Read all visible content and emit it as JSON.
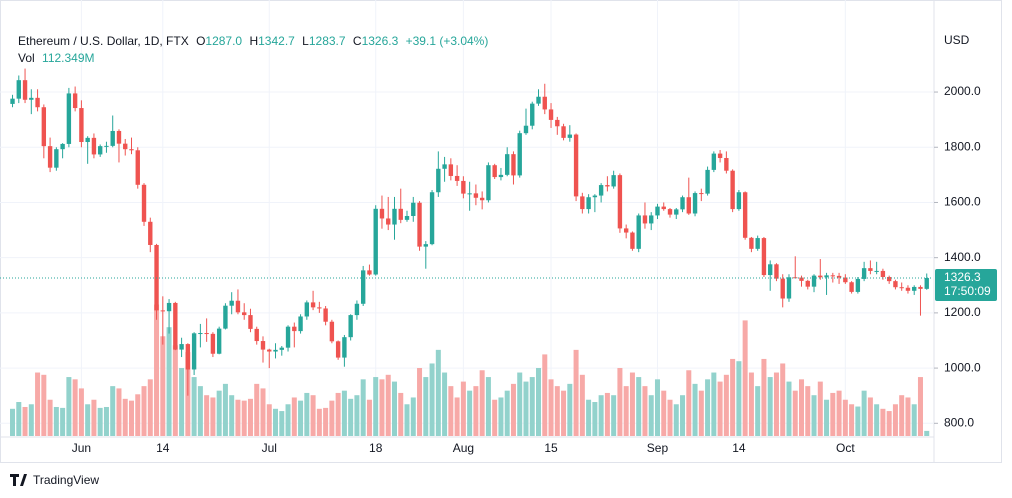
{
  "chart_data": {
    "type": "candlestick",
    "title": "Ethereum / U.S. Dollar, 1D, FTX",
    "legend": {
      "o_label": "O",
      "o": "1287.0",
      "h_label": "H",
      "h": "1342.7",
      "l_label": "L",
      "l": "1283.7",
      "c_label": "C",
      "c": "1326.3",
      "change": "+39.1 (+3.04%)",
      "vol_label": "Vol",
      "vol": "112.349M"
    },
    "currency": "USD",
    "open": [
      1957,
      1976,
      2043,
      1972,
      1979,
      1945,
      1804,
      1726,
      1793,
      1812,
      1995,
      1942,
      1819,
      1834,
      1774,
      1804,
      1805,
      1859,
      1813,
      1793,
      1789,
      1664,
      1530,
      1446,
      1209,
      1206,
      1236,
      1067,
      1087,
      995,
      1126,
      1127,
      1124,
      1052,
      1143,
      1226,
      1244,
      1202,
      1192,
      1142,
      1098,
      1067,
      1060,
      1066,
      1074,
      1150,
      1134,
      1187,
      1238,
      1220,
      1216,
      1168,
      1097,
      1038,
      1112,
      1192,
      1233,
      1354,
      1339,
      1577,
      1542,
      1520,
      1577,
      1537,
      1551,
      1599,
      1440,
      1449,
      1637,
      1722,
      1738,
      1696,
      1678,
      1632,
      1633,
      1617,
      1608,
      1735,
      1692,
      1700,
      1775,
      1698,
      1851,
      1878,
      1958,
      1983,
      1937,
      1899,
      1876,
      1834,
      1846,
      1622,
      1576,
      1619,
      1625,
      1663,
      1658,
      1699,
      1506,
      1491,
      1432,
      1553,
      1524,
      1553,
      1585,
      1576,
      1556,
      1575,
      1619,
      1560,
      1634,
      1632,
      1718,
      1777,
      1761,
      1715,
      1576,
      1637,
      1472,
      1432,
      1471,
      1337,
      1376,
      1324,
      1252,
      1329,
      1328,
      1316,
      1295,
      1335,
      1329,
      1336,
      1334,
      1328,
      1311,
      1276,
      1323,
      1362,
      1352,
      1352,
      1330,
      1315,
      1293,
      1291,
      1280,
      1294,
      1287.0
    ],
    "high": [
      1990,
      2060,
      2085,
      2010,
      2010,
      1955,
      1835,
      1800,
      1815,
      2015,
      2020,
      1970,
      1840,
      1850,
      1810,
      1820,
      1915,
      1865,
      1830,
      1835,
      1800,
      1670,
      1545,
      1450,
      1260,
      1250,
      1240,
      1110,
      1090,
      1130,
      1160,
      1180,
      1130,
      1150,
      1235,
      1275,
      1285,
      1235,
      1215,
      1150,
      1115,
      1070,
      1090,
      1080,
      1155,
      1165,
      1195,
      1245,
      1280,
      1240,
      1225,
      1175,
      1100,
      1120,
      1195,
      1245,
      1370,
      1375,
      1590,
      1625,
      1620,
      1620,
      1650,
      1570,
      1620,
      1605,
      1460,
      1645,
      1785,
      1765,
      1760,
      1735,
      1695,
      1675,
      1665,
      1640,
      1745,
      1740,
      1725,
      1800,
      1785,
      1860,
      1940,
      1965,
      2010,
      2030,
      1960,
      1910,
      1885,
      1880,
      1850,
      1635,
      1630,
      1630,
      1670,
      1695,
      1715,
      1705,
      1520,
      1495,
      1560,
      1600,
      1565,
      1595,
      1600,
      1580,
      1580,
      1625,
      1690,
      1640,
      1650,
      1730,
      1785,
      1790,
      1785,
      1720,
      1645,
      1640,
      1475,
      1480,
      1475,
      1390,
      1380,
      1340,
      1340,
      1405,
      1335,
      1320,
      1340,
      1395,
      1345,
      1345,
      1345,
      1340,
      1315,
      1330,
      1385,
      1390,
      1385,
      1360,
      1335,
      1320,
      1310,
      1300,
      1300,
      1300,
      1342.7
    ],
    "low": [
      1945,
      1960,
      1960,
      1920,
      1930,
      1760,
      1710,
      1715,
      1760,
      1800,
      1930,
      1800,
      1740,
      1760,
      1765,
      1780,
      1800,
      1745,
      1770,
      1775,
      1650,
      1515,
      1420,
      1175,
      1085,
      1125,
      1065,
      1040,
      900,
      975,
      1075,
      1095,
      1040,
      1050,
      1140,
      1195,
      1195,
      1175,
      1130,
      1085,
      1020,
      1000,
      1035,
      1045,
      1060,
      1075,
      1125,
      1175,
      1210,
      1200,
      1155,
      1090,
      1030,
      1005,
      1100,
      1175,
      1225,
      1335,
      1335,
      1505,
      1500,
      1465,
      1525,
      1530,
      1530,
      1425,
      1360,
      1445,
      1620,
      1675,
      1680,
      1660,
      1615,
      1570,
      1590,
      1575,
      1600,
      1685,
      1680,
      1695,
      1665,
      1690,
      1845,
      1865,
      1950,
      1920,
      1870,
      1845,
      1825,
      1820,
      1605,
      1560,
      1560,
      1565,
      1600,
      1640,
      1650,
      1490,
      1470,
      1425,
      1420,
      1505,
      1500,
      1540,
      1570,
      1545,
      1540,
      1565,
      1555,
      1550,
      1605,
      1625,
      1710,
      1745,
      1705,
      1565,
      1570,
      1465,
      1420,
      1425,
      1330,
      1280,
      1315,
      1220,
      1240,
      1325,
      1295,
      1285,
      1275,
      1320,
      1265,
      1310,
      1305,
      1305,
      1270,
      1270,
      1315,
      1340,
      1340,
      1320,
      1305,
      1285,
      1280,
      1270,
      1265,
      1190,
      1283.7
    ],
    "close": [
      1976,
      2043,
      1972,
      1979,
      1945,
      1804,
      1726,
      1793,
      1812,
      1995,
      1942,
      1819,
      1834,
      1774,
      1804,
      1805,
      1859,
      1813,
      1793,
      1789,
      1664,
      1530,
      1446,
      1209,
      1206,
      1236,
      1067,
      1087,
      995,
      1126,
      1127,
      1124,
      1052,
      1143,
      1226,
      1244,
      1202,
      1192,
      1142,
      1098,
      1067,
      1060,
      1066,
      1074,
      1150,
      1134,
      1187,
      1238,
      1220,
      1216,
      1168,
      1097,
      1038,
      1112,
      1192,
      1233,
      1354,
      1339,
      1577,
      1542,
      1520,
      1577,
      1537,
      1551,
      1599,
      1440,
      1449,
      1637,
      1722,
      1738,
      1696,
      1678,
      1632,
      1633,
      1617,
      1608,
      1735,
      1692,
      1700,
      1775,
      1698,
      1851,
      1878,
      1958,
      1983,
      1937,
      1899,
      1876,
      1834,
      1846,
      1622,
      1576,
      1619,
      1625,
      1663,
      1658,
      1699,
      1506,
      1491,
      1432,
      1553,
      1524,
      1553,
      1585,
      1576,
      1556,
      1575,
      1619,
      1560,
      1634,
      1632,
      1718,
      1777,
      1761,
      1715,
      1576,
      1637,
      1472,
      1432,
      1471,
      1337,
      1376,
      1324,
      1252,
      1329,
      1328,
      1316,
      1295,
      1335,
      1329,
      1336,
      1334,
      1328,
      1311,
      1276,
      1323,
      1362,
      1352,
      1352,
      1330,
      1315,
      1293,
      1291,
      1280,
      1294,
      1287,
      1326.3
    ],
    "volume": [
      600,
      750,
      640,
      700,
      1400,
      1350,
      800,
      640,
      620,
      1300,
      1250,
      1050,
      700,
      800,
      620,
      640,
      1100,
      1050,
      820,
      780,
      920,
      1100,
      1250,
      2900,
      2200,
      2400,
      2000,
      1500,
      1850,
      1300,
      1100,
      900,
      850,
      1000,
      1150,
      900,
      800,
      780,
      820,
      1150,
      1050,
      700,
      600,
      550,
      700,
      850,
      780,
      950,
      900,
      600,
      620,
      780,
      950,
      1000,
      820,
      900,
      1250,
      800,
      1300,
      1250,
      1350,
      1200,
      950,
      700,
      850,
      1500,
      1300,
      1600,
      1900,
      1400,
      1100,
      850,
      1200,
      1000,
      1100,
      1450,
      1300,
      800,
      850,
      1000,
      1150,
      1400,
      1200,
      1300,
      1500,
      1800,
      1250,
      1100,
      1000,
      1150,
      1900,
      1350,
      800,
      750,
      900,
      950,
      900,
      1500,
      1100,
      1400,
      1300,
      1100,
      900,
      1250,
      1000,
      800,
      700,
      900,
      1450,
      1150,
      1000,
      1250,
      1400,
      1200,
      1350,
      1700,
      1650,
      2550,
      1400,
      1100,
      1700,
      1300,
      1400,
      1600,
      1200,
      1000,
      1250,
      1100,
      900,
      1200,
      800,
      950,
      1000,
      800,
      700,
      650,
      1000,
      850,
      700,
      600,
      550,
      700,
      900,
      850,
      700,
      1300,
      112.349
    ],
    "up_color": "#26a69a",
    "down_color": "#ef5350",
    "volume_up_color": "#92d2cc",
    "volume_down_color": "#f7a9a7",
    "ylim": [
      754,
      2232
    ],
    "yticks": [
      {
        "value": 800,
        "label": "800.0"
      },
      {
        "value": 1000,
        "label": "1000.0"
      },
      {
        "value": 1200,
        "label": "1200.0"
      },
      {
        "value": 1400,
        "label": "1400.0"
      },
      {
        "value": 1600,
        "label": "1600.0"
      },
      {
        "value": 1800,
        "label": "1800.0"
      },
      {
        "value": 2000,
        "label": "2000.0"
      }
    ],
    "volume_lim": [
      0,
      9000
    ],
    "xlim": [
      -2,
      147
    ],
    "xticks": [
      {
        "value": 11,
        "label": "Jun"
      },
      {
        "value": 24,
        "label": "14"
      },
      {
        "value": 41,
        "label": "Jul"
      },
      {
        "value": 58,
        "label": "18"
      },
      {
        "value": 72,
        "label": "Aug"
      },
      {
        "value": 86,
        "label": "15"
      },
      {
        "value": 103,
        "label": "Sep"
      },
      {
        "value": 116,
        "label": "14"
      },
      {
        "value": 133,
        "label": "Oct"
      }
    ],
    "price_tag": {
      "price": "1326.3",
      "countdown": "17:50:09"
    },
    "grid": true
  },
  "footer": {
    "brand": "TradingView"
  }
}
